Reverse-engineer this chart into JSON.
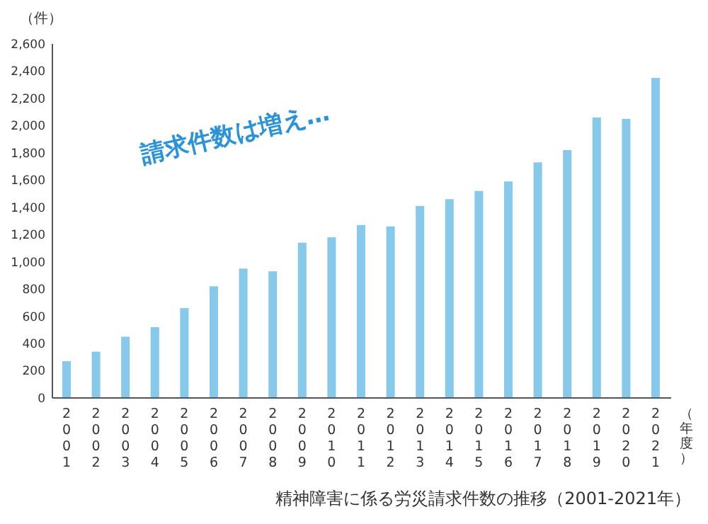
{
  "chart_data": {
    "type": "bar",
    "title": "精神障害に係る労災請求件数の推移（2001-2021年）",
    "ylabel": "（件）",
    "xlabel": "（年度）",
    "annotations": [
      "請求件数は増え…"
    ],
    "categories": [
      "2001",
      "2002",
      "2003",
      "2004",
      "2005",
      "2006",
      "2007",
      "2008",
      "2009",
      "2010",
      "2011",
      "2012",
      "2013",
      "2014",
      "2015",
      "2016",
      "2017",
      "2018",
      "2019",
      "2020",
      "2021"
    ],
    "values": [
      270,
      340,
      450,
      520,
      660,
      820,
      950,
      930,
      1140,
      1180,
      1270,
      1260,
      1410,
      1460,
      1520,
      1590,
      1730,
      1820,
      2060,
      2050,
      2350
    ],
    "color": "#87c9ea",
    "ylim": [
      0,
      2600
    ],
    "yticks": [
      0,
      {
        "value": 200,
        "label": "200"
      },
      {
        "value": 400,
        "label": "400"
      },
      {
        "value": 600,
        "label": "600"
      },
      {
        "value": 800,
        "label": "800"
      },
      {
        "value": 1000,
        "label": "1,000"
      },
      {
        "value": 1200,
        "label": "1,200"
      },
      {
        "value": 1400,
        "label": "1,400"
      },
      {
        "value": 1600,
        "label": "1,600"
      },
      {
        "value": 1800,
        "label": "1,800"
      },
      {
        "value": 2000,
        "label": "2,000"
      },
      {
        "value": 2200,
        "label": "2,200"
      },
      {
        "value": 2400,
        "label": "2,400"
      },
      {
        "value": 2600,
        "label": "2,600"
      }
    ],
    "grid": false
  }
}
